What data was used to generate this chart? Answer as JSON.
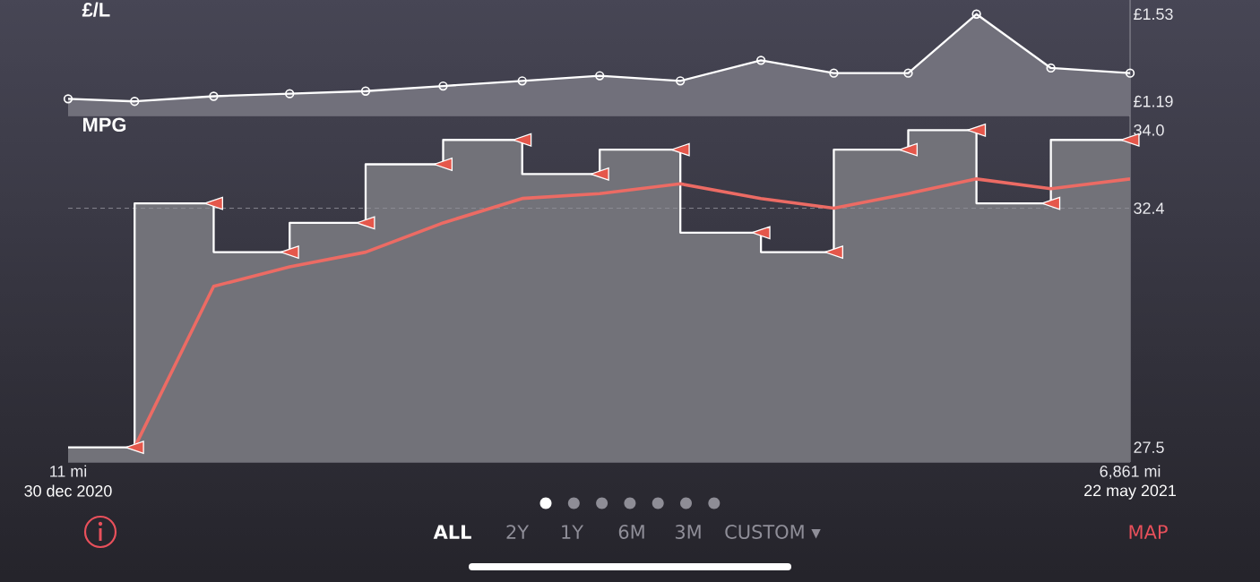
{
  "chart_data": [
    {
      "type": "area",
      "title": "£/L",
      "x": [
        11,
        440,
        950,
        1440,
        1930,
        2430,
        2940,
        3440,
        3960,
        4480,
        4950,
        5430,
        5870,
        6350,
        6861
      ],
      "series": [
        {
          "color": "#ffffff",
          "marker": "circle",
          "values": [
            1.2,
            1.19,
            1.21,
            1.22,
            1.23,
            1.25,
            1.27,
            1.29,
            1.27,
            1.35,
            1.3,
            1.3,
            1.53,
            1.32,
            1.3
          ]
        }
      ],
      "xlim": [
        11,
        6861
      ],
      "ylim": [
        1.135,
        1.585
      ],
      "yticks": [
        {
          "value": 1.19,
          "label": "£1.19"
        },
        {
          "value": 1.53,
          "label": "£1.53"
        }
      ],
      "tick_labels": "y"
    },
    {
      "type": "area",
      "title": "MPG",
      "series": [
        {
          "type": "area",
          "color": "#ffffff",
          "x": [
            11,
            440,
            440,
            950,
            950,
            1440,
            1440,
            1930,
            1930,
            2430,
            2430,
            2940,
            2940,
            3440,
            3440,
            3960,
            3960,
            4480,
            4480,
            4950,
            4950,
            5430,
            5430,
            5870,
            5870,
            6350,
            6350,
            6861
          ],
          "values": [
            27.5,
            27.5,
            32.5,
            32.5,
            31.5,
            31.5,
            32.1,
            32.1,
            33.3,
            33.3,
            33.8,
            33.8,
            33.1,
            33.1,
            33.6,
            33.6,
            31.9,
            31.9,
            31.5,
            31.5,
            33.6,
            33.6,
            34.0,
            34.0,
            32.5,
            32.5,
            33.8,
            33.8
          ]
        },
        {
          "type": "line",
          "color": "#ec6b64",
          "x": [
            440,
            950,
            1440,
            1930,
            2430,
            2940,
            3440,
            3960,
            4480,
            4950,
            5430,
            5870,
            6350,
            6861
          ],
          "values": [
            27.5,
            30.8,
            31.2,
            31.5,
            32.1,
            32.6,
            32.7,
            32.9,
            32.6,
            32.4,
            32.7,
            33.0,
            32.8,
            33.0
          ]
        },
        {
          "type": "scatter",
          "color": "#e5574b",
          "marker": "triangle",
          "x": [
            440,
            950,
            1440,
            1930,
            2430,
            2940,
            3440,
            3960,
            4480,
            4950,
            5430,
            5870,
            6350,
            6861
          ],
          "values": [
            27.5,
            32.5,
            31.5,
            32.1,
            33.3,
            33.8,
            33.1,
            33.6,
            31.9,
            31.5,
            33.6,
            34.0,
            32.5,
            33.8
          ]
        }
      ],
      "xlim": [
        11,
        6861
      ],
      "ylim": [
        27.2,
        34.3
      ],
      "xticks": [
        {
          "value": 11,
          "label": "11 mi"
        },
        {
          "value": 6861,
          "label": "6,861 mi"
        }
      ],
      "yticks": [
        27.5,
        {
          "value": 34.0,
          "label": "34.0"
        }
      ],
      "ref_lines": [
        {
          "axis": "y",
          "value": 32.4,
          "label": "32.4",
          "color": "#8e8d97",
          "line_style": "dashed"
        }
      ],
      "annotations": [
        "30 dec 2020",
        "22 may 2021"
      ]
    },
    {
      "type": "other",
      "annotations": [
        "ALL",
        "2Y",
        "1Y",
        "6M",
        "3M",
        "CUSTOM ▾",
        "MAP"
      ]
    }
  ]
}
